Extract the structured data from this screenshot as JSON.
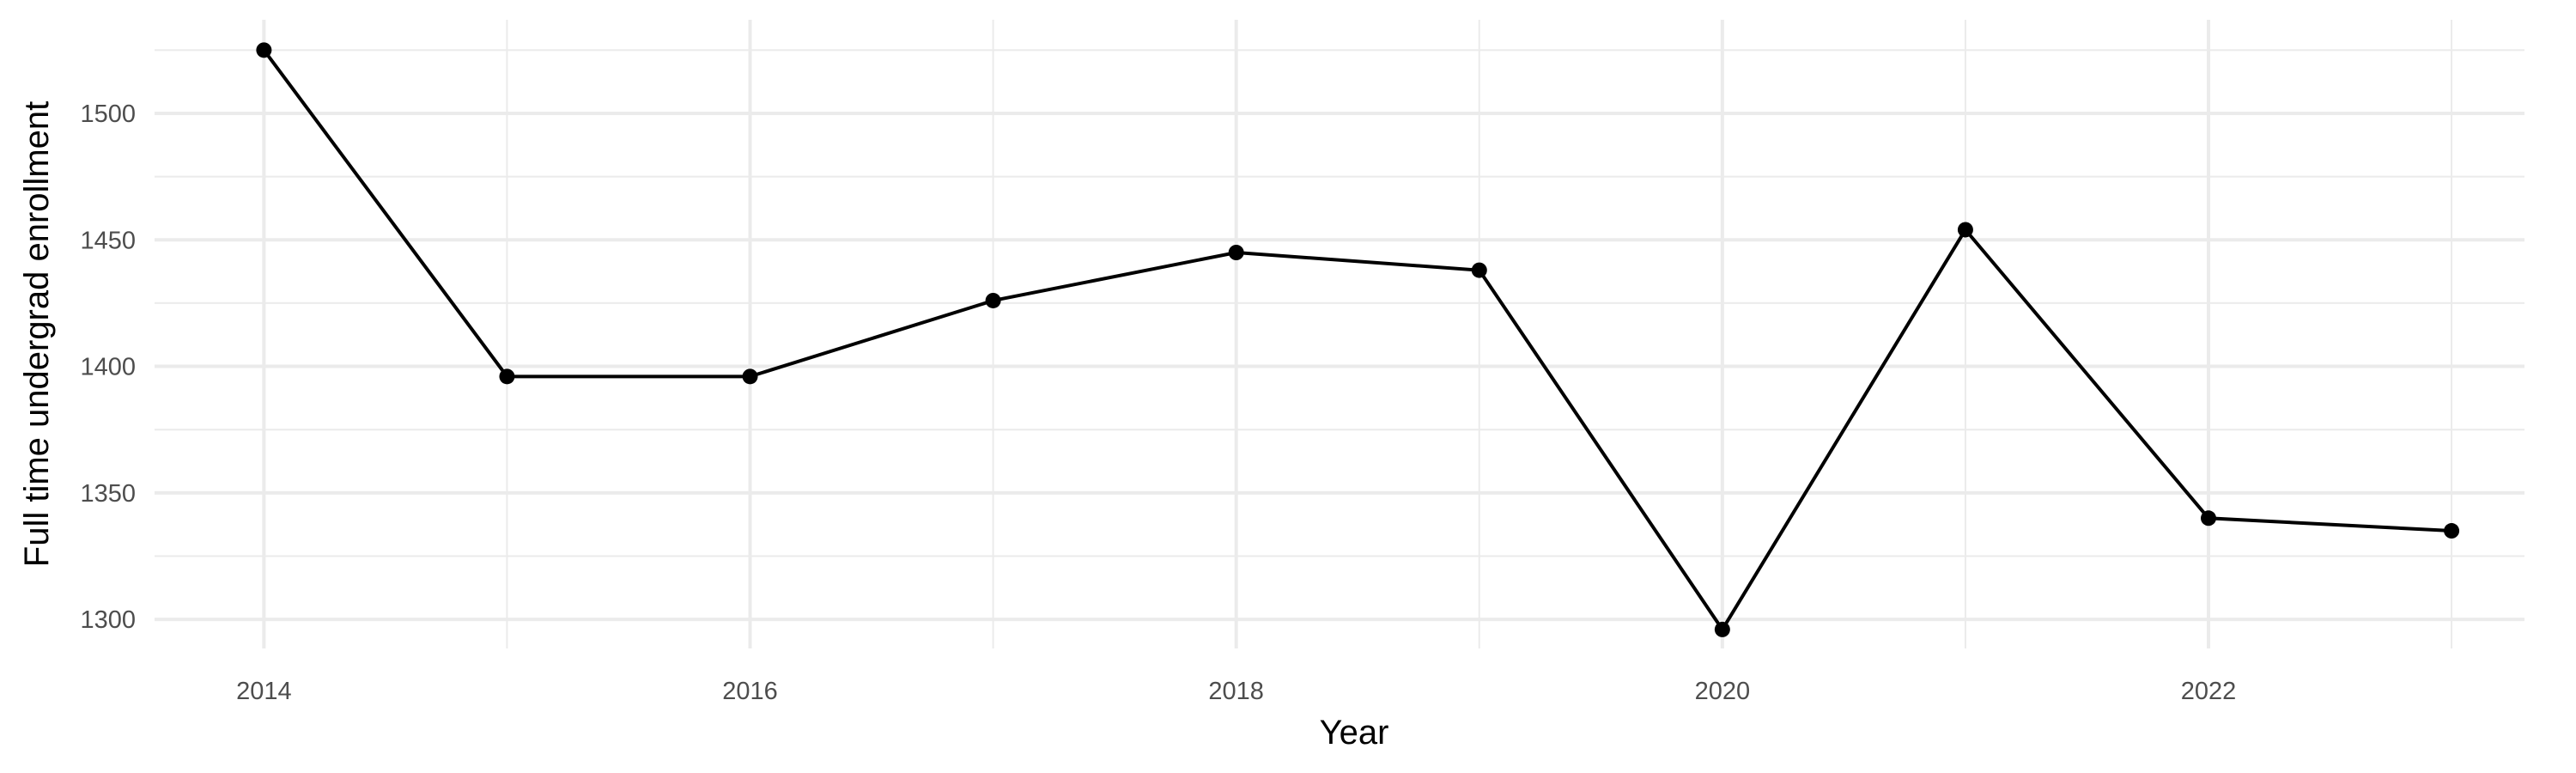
{
  "chart_data": {
    "type": "line",
    "title": "",
    "xlabel": "Year",
    "ylabel": "Full time undergrad enrollment",
    "x": [
      2014,
      2015,
      2016,
      2017,
      2018,
      2019,
      2020,
      2021,
      2022,
      2023
    ],
    "series": [
      {
        "values": [
          1525,
          1396,
          1396,
          1426,
          1445,
          1438,
          1296,
          1454,
          1340,
          1335
        ]
      }
    ],
    "x_ticks": [
      "2014",
      "2016",
      "2018",
      "2020",
      "2022"
    ],
    "y_ticks": [
      "1300",
      "1350",
      "1400",
      "1450",
      "1500"
    ],
    "xlim": [
      2013.55,
      2023.3
    ],
    "ylim": [
      1288.5,
      1537
    ],
    "grid": true,
    "legend": "none",
    "colors": {
      "line": "#000000",
      "grid": "#ebebeb",
      "tick_text": "#4d4d4d"
    }
  }
}
